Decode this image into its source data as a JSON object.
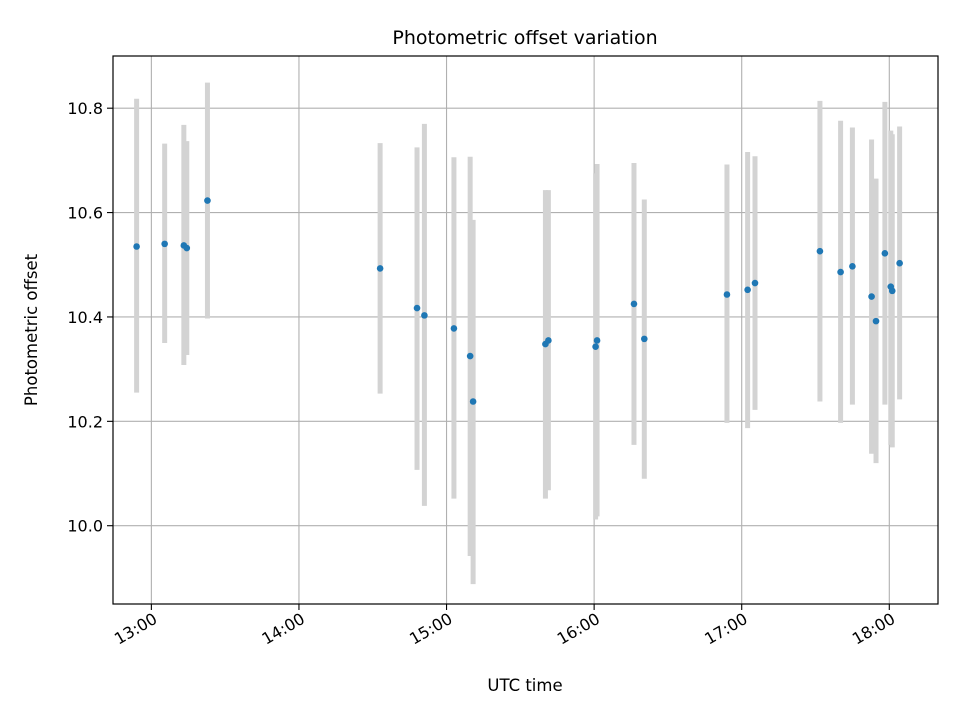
{
  "chart_data": {
    "type": "scatter",
    "title": "Photometric offset variation",
    "xlabel": "UTC time",
    "ylabel": "Photometric offset",
    "xlim": [
      12.74,
      18.33
    ],
    "ylim": [
      9.85,
      10.9
    ],
    "grid": true,
    "x_ticks": [
      13,
      14,
      15,
      16,
      17,
      18
    ],
    "x_tick_labels": [
      "13:00",
      "14:00",
      "15:00",
      "16:00",
      "17:00",
      "18:00"
    ],
    "y_ticks": [
      10.0,
      10.2,
      10.4,
      10.6,
      10.8
    ],
    "y_tick_labels": [
      "10.0",
      "10.2",
      "10.4",
      "10.6",
      "10.8"
    ],
    "colors": {
      "marker": "#1f77b4",
      "errorbar": "#d3d3d3",
      "grid": "#b0b0b0"
    },
    "points": [
      {
        "x": 12.9,
        "y": 10.535,
        "ylow": 10.255,
        "yhigh": 10.818
      },
      {
        "x": 13.09,
        "y": 10.54,
        "ylow": 10.35,
        "yhigh": 10.732
      },
      {
        "x": 13.22,
        "y": 10.537,
        "ylow": 10.308,
        "yhigh": 10.768
      },
      {
        "x": 13.24,
        "y": 10.532,
        "ylow": 10.327,
        "yhigh": 10.737
      },
      {
        "x": 13.38,
        "y": 10.623,
        "ylow": 10.397,
        "yhigh": 10.849
      },
      {
        "x": 14.55,
        "y": 10.493,
        "ylow": 10.253,
        "yhigh": 10.733
      },
      {
        "x": 14.8,
        "y": 10.417,
        "ylow": 10.107,
        "yhigh": 10.725
      },
      {
        "x": 14.85,
        "y": 10.403,
        "ylow": 10.038,
        "yhigh": 10.77
      },
      {
        "x": 15.05,
        "y": 10.378,
        "ylow": 10.052,
        "yhigh": 10.706
      },
      {
        "x": 15.16,
        "y": 10.325,
        "ylow": 9.942,
        "yhigh": 10.707
      },
      {
        "x": 15.18,
        "y": 10.238,
        "ylow": 9.888,
        "yhigh": 10.586
      },
      {
        "x": 15.67,
        "y": 10.348,
        "ylow": 10.052,
        "yhigh": 10.643
      },
      {
        "x": 15.69,
        "y": 10.355,
        "ylow": 10.068,
        "yhigh": 10.643
      },
      {
        "x": 16.01,
        "y": 10.343,
        "ylow": 10.012,
        "yhigh": 10.675
      },
      {
        "x": 16.02,
        "y": 10.355,
        "ylow": 10.018,
        "yhigh": 10.693
      },
      {
        "x": 16.27,
        "y": 10.425,
        "ylow": 10.155,
        "yhigh": 10.695
      },
      {
        "x": 16.34,
        "y": 10.358,
        "ylow": 10.09,
        "yhigh": 10.625
      },
      {
        "x": 16.9,
        "y": 10.443,
        "ylow": 10.197,
        "yhigh": 10.692
      },
      {
        "x": 17.04,
        "y": 10.452,
        "ylow": 10.187,
        "yhigh": 10.716
      },
      {
        "x": 17.09,
        "y": 10.465,
        "ylow": 10.222,
        "yhigh": 10.708
      },
      {
        "x": 17.53,
        "y": 10.526,
        "ylow": 10.238,
        "yhigh": 10.814
      },
      {
        "x": 17.67,
        "y": 10.486,
        "ylow": 10.197,
        "yhigh": 10.776
      },
      {
        "x": 17.75,
        "y": 10.497,
        "ylow": 10.232,
        "yhigh": 10.763
      },
      {
        "x": 17.88,
        "y": 10.439,
        "ylow": 10.138,
        "yhigh": 10.74
      },
      {
        "x": 17.91,
        "y": 10.392,
        "ylow": 10.12,
        "yhigh": 10.665
      },
      {
        "x": 17.97,
        "y": 10.522,
        "ylow": 10.232,
        "yhigh": 10.812
      },
      {
        "x": 18.01,
        "y": 10.458,
        "ylow": 10.155,
        "yhigh": 10.757
      },
      {
        "x": 18.02,
        "y": 10.45,
        "ylow": 10.15,
        "yhigh": 10.75
      },
      {
        "x": 18.07,
        "y": 10.503,
        "ylow": 10.242,
        "yhigh": 10.765
      }
    ]
  }
}
